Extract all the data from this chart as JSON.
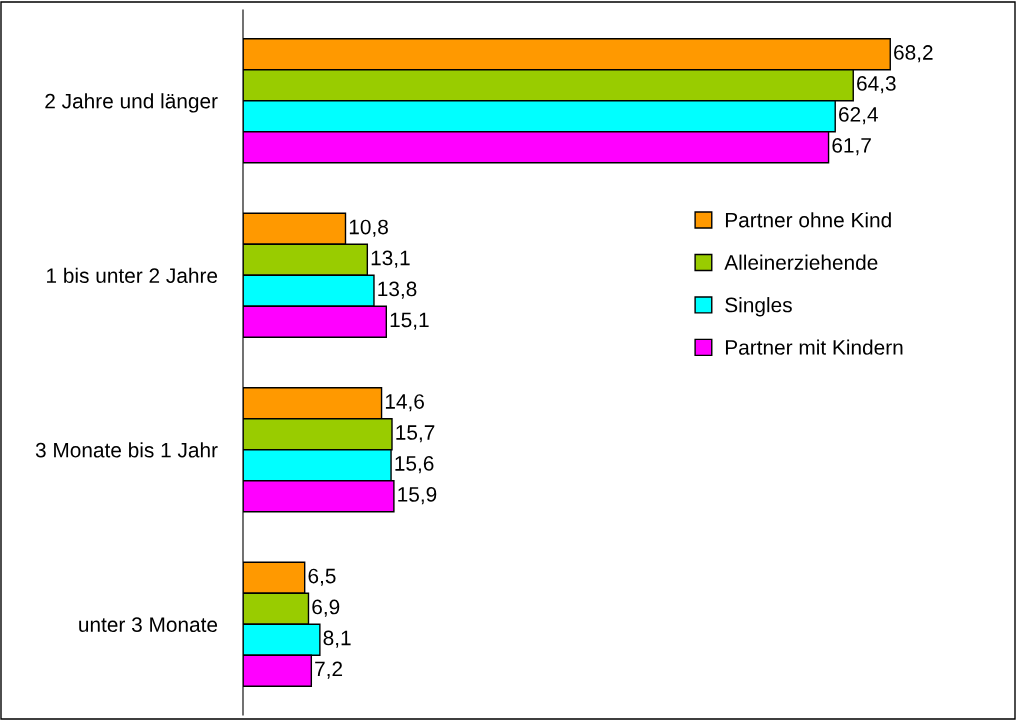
{
  "chart_data": {
    "type": "bar",
    "orientation": "horizontal",
    "categories": [
      "2 Jahre und länger",
      "1 bis unter 2 Jahre",
      "3 Monate bis 1 Jahr",
      "unter 3 Monate"
    ],
    "series": [
      {
        "name": "Partner ohne Kind",
        "color": "#ff9900",
        "values": [
          68.2,
          10.8,
          14.6,
          6.5
        ],
        "value_labels": [
          "68,2",
          "10,8",
          "14,6",
          "6,5"
        ]
      },
      {
        "name": "Alleinerziehende",
        "color": "#99cc00",
        "values": [
          64.3,
          13.1,
          15.7,
          6.9
        ],
        "value_labels": [
          "64,3",
          "13,1",
          "15,7",
          "6,9"
        ]
      },
      {
        "name": "Singles",
        "color": "#00ffff",
        "values": [
          62.4,
          13.8,
          15.6,
          8.1
        ],
        "value_labels": [
          "62,4",
          "13,8",
          "15,6",
          "8,1"
        ]
      },
      {
        "name": "Partner mit Kindern",
        "color": "#ff00ff",
        "values": [
          61.7,
          15.1,
          15.9,
          7.2
        ],
        "value_labels": [
          "61,7",
          "15,1",
          "15,9",
          "7,2"
        ]
      }
    ],
    "legend": "right",
    "grid": false,
    "tick_labels": "y"
  }
}
